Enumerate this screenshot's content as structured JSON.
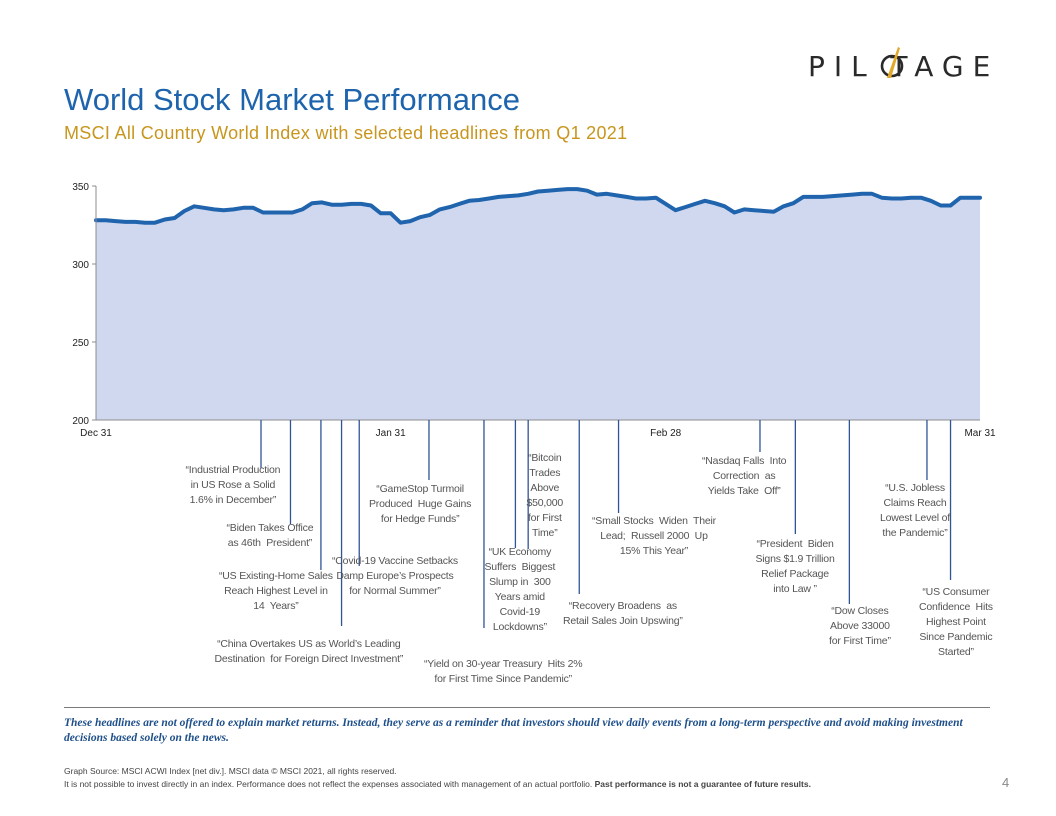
{
  "brand": {
    "logo_text": "PIL TAGE"
  },
  "title": "World Stock Market Performance",
  "subtitle": "MSCI All Country World Index with selected headlines from Q1 2021",
  "chart_data": {
    "type": "area",
    "x": [
      0,
      1,
      2,
      3,
      4,
      5,
      6,
      7,
      8,
      9,
      10,
      11,
      12,
      13,
      14,
      15,
      16,
      17,
      18,
      19,
      20,
      21,
      22,
      23,
      24,
      25,
      26,
      27,
      28,
      29,
      30,
      31,
      32,
      33,
      34,
      35,
      36,
      37,
      38,
      39,
      40,
      41,
      42,
      43,
      44,
      45,
      46,
      47,
      48,
      49,
      50,
      51,
      52,
      53,
      54,
      55,
      56,
      57,
      58,
      59,
      60,
      61,
      62,
      63,
      64,
      65,
      66,
      67,
      68,
      69,
      70,
      71,
      72,
      73,
      74,
      75,
      76,
      77,
      78,
      79,
      80,
      81,
      82,
      83,
      84,
      85,
      86,
      87,
      88,
      89,
      90
    ],
    "values": [
      328,
      328,
      327.5,
      327,
      327,
      326.5,
      326.5,
      328.5,
      329.5,
      334,
      337,
      336,
      335,
      334.5,
      335,
      336,
      336,
      333,
      333,
      333,
      333,
      335,
      339,
      339.5,
      338,
      338,
      338.5,
      338.5,
      337.5,
      332.5,
      332.5,
      326.5,
      327.5,
      330,
      331.5,
      335,
      336.5,
      338.5,
      340.5,
      341,
      342,
      343,
      343.5,
      344,
      345,
      346.5,
      347,
      347.5,
      348,
      348,
      347,
      344.5,
      345,
      344,
      343,
      342,
      342,
      342.5,
      338.5,
      334.5,
      336.5,
      338.5,
      340.5,
      339,
      337,
      333,
      335,
      334.5,
      334,
      333.5,
      337,
      339,
      343,
      343,
      343,
      343.5,
      344,
      344.5,
      345,
      345,
      342.5,
      342,
      342,
      342.5,
      342.5,
      340.5,
      337.5,
      337.5,
      342.5,
      342.5,
      342.5
    ],
    "ylim": [
      200,
      350
    ],
    "yticks": [
      200,
      250,
      300,
      350
    ],
    "xticks": [
      {
        "pos": 0,
        "label": "Dec 31"
      },
      {
        "pos": 30,
        "label": "Jan 31"
      },
      {
        "pos": 58,
        "label": "Feb 28"
      },
      {
        "pos": 90,
        "label": "Mar 31"
      }
    ],
    "annotations": [
      {
        "pos": 16.8,
        "text": "“Industrial Production\nin US Rose a Solid\n1.6% in December”"
      },
      {
        "pos": 19.8,
        "text": "“Biden Takes Office\nas 46th  President”"
      },
      {
        "pos": 22.9,
        "text": "“US Existing-Home Sales\nReach Highest Level in\n14  Years”"
      },
      {
        "pos": 25.0,
        "text": "“China Overtakes US as World’s Leading\nDestination  for Foreign Direct Investment”"
      },
      {
        "pos": 26.8,
        "text": "“Covid-19 Vaccine Setbacks\nDamp Europe’s Prospects\nfor Normal Summer”"
      },
      {
        "pos": 33.9,
        "text": "“GameStop Turmoil\nProduced  Huge Gains\nfor Hedge Funds”"
      },
      {
        "pos": 39.5,
        "text": "“Yield on 30-year Treasury  Hits 2%\nfor First Time Since Pandemic”"
      },
      {
        "pos": 42.7,
        "text": "“UK Economy\nSuffers  Biggest\nSlump in  300\nYears amid\nCovid-19\nLockdowns”"
      },
      {
        "pos": 44.0,
        "text": "“Bitcoin\nTrades\nAbove\n$50,000\nfor First\nTime”"
      },
      {
        "pos": 49.2,
        "text": "“Recovery Broadens  as\nRetail Sales Join Upswing”"
      },
      {
        "pos": 53.2,
        "text": "“Small Stocks  Widen  Their\nLead;  Russell 2000  Up\n15% This Year”"
      },
      {
        "pos": 67.6,
        "text": "“Nasdaq Falls  Into\nCorrection  as\nYields Take  Off”"
      },
      {
        "pos": 71.2,
        "text": "“President  Biden\nSigns $1.9 Trillion\nRelief Package\ninto Law ”"
      },
      {
        "pos": 76.7,
        "text": "“Dow Closes\nAbove 33000\nfor First Time”"
      },
      {
        "pos": 84.6,
        "text": "“U.S. Jobless\nClaims Reach\nLowest Level of\nthe Pandemic”"
      },
      {
        "pos": 87.0,
        "text": "“US Consumer\nConfidence  Hits\nHighest Point\nSince Pandemic\nStarted”"
      }
    ],
    "colors": {
      "line": "#1f64ad",
      "fill": "#d0d8f0",
      "axis": "#8c8c8c",
      "leader": "#2f5597"
    }
  },
  "disclaimer": "These headlines are not offered to explain market returns.  Instead, they serve  as  a reminder  that investors should view daily events  from  a long-term perspective  and avoid making investment decisions based solely on the news.",
  "source": {
    "line1": "Graph Source: MSCI ACWI Index [net div.]. MSCI data © MSCI 2021, all rights reserved.",
    "line2": "It is not possible to invest directly in an index. Performance does not reflect the expenses associated with management of an actual portfolio. ",
    "line2_bold": "Past performance is not a guarantee of future results."
  },
  "page_number": "4"
}
